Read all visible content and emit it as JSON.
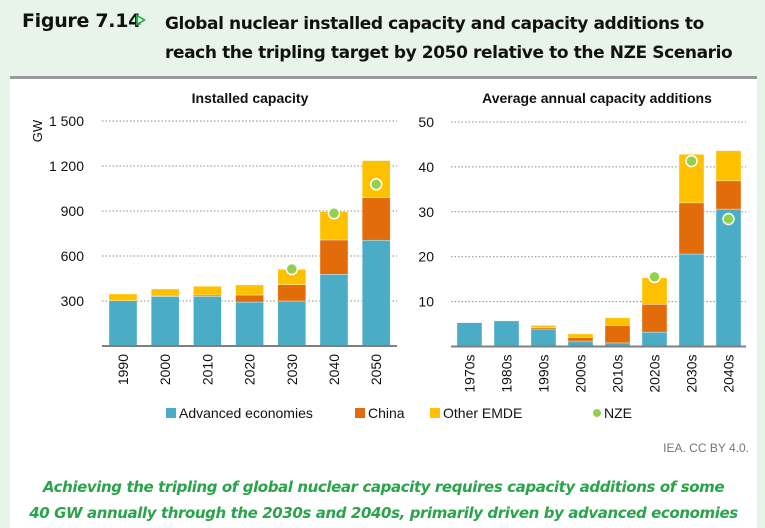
{
  "figure": {
    "number": "Figure 7.14",
    "arrow_icon": "triangle-right-icon",
    "title_line1": "Global nuclear installed capacity and capacity additions to",
    "title_line2": "reach the tripling target by 2050 relative to the NZE Scenario",
    "credit": "IEA. CC BY 4.0.",
    "caption_line1": "Achieving the tripling of global nuclear capacity requires capacity additions of some",
    "caption_line2": "40 GW annually through the 2030s and 2040s, primarily driven by advanced economies"
  },
  "colors": {
    "advanced": "#4bacc6",
    "china": "#e36c0a",
    "other_emde": "#ffc000",
    "nze": "#92d050",
    "grid": "#8a8a8a",
    "axis": "#7f7f7f"
  },
  "legend": [
    {
      "key": "advanced",
      "label": "Advanced economies",
      "shape": "square"
    },
    {
      "key": "china",
      "label": "China",
      "shape": "square"
    },
    {
      "key": "other_emde",
      "label": "Other EMDE",
      "shape": "square"
    },
    {
      "key": "nze",
      "label": "NZE",
      "shape": "circle"
    }
  ],
  "chart_data": [
    {
      "type": "bar",
      "stacked": true,
      "title": "Installed capacity",
      "ylabel": "GW",
      "xlabel": "",
      "ylim": [
        0,
        1500
      ],
      "yticks": [
        300,
        600,
        900,
        1200,
        1500
      ],
      "ytick_labels": [
        "300",
        "600",
        "900",
        "1 200",
        "1 500"
      ],
      "grid": true,
      "legend_position": "bottom",
      "categories": [
        "1990",
        "2000",
        "2010",
        "2020",
        "2030",
        "2040",
        "2050"
      ],
      "series": [
        {
          "name": "Advanced economies",
          "key": "advanced",
          "values": [
            302,
            331,
            331,
            293,
            300,
            478,
            705
          ]
        },
        {
          "name": "China",
          "key": "china",
          "values": [
            0,
            2,
            9,
            47,
            109,
            229,
            284
          ]
        },
        {
          "name": "Other EMDE",
          "key": "other_emde",
          "values": [
            45,
            47,
            58,
            67,
            102,
            189,
            247
          ]
        }
      ],
      "nze": {
        "name": "NZE",
        "values": [
          null,
          null,
          null,
          null,
          513,
          885,
          1078
        ]
      }
    },
    {
      "type": "bar",
      "stacked": true,
      "title": "Average annual capacity additions",
      "ylabel": "GW",
      "xlabel": "",
      "ylim": [
        0,
        50
      ],
      "yticks": [
        10,
        20,
        30,
        40,
        50
      ],
      "ytick_labels": [
        "10",
        "20",
        "30",
        "40",
        "50"
      ],
      "grid": true,
      "legend_position": "bottom",
      "categories": [
        "1970s",
        "1980s",
        "1990s",
        "2000s",
        "2010s",
        "2020s",
        "2030s",
        "2040s"
      ],
      "series": [
        {
          "name": "Advanced economies",
          "key": "advanced",
          "values": [
            5.3,
            5.7,
            3.9,
            1.2,
            0.8,
            3.2,
            20.6,
            30.6
          ]
        },
        {
          "name": "China",
          "key": "china",
          "values": [
            0,
            0,
            0.3,
            0.8,
            3.9,
            6.2,
            11.4,
            6.3
          ]
        },
        {
          "name": "Other EMDE",
          "key": "other_emde",
          "values": [
            0,
            0,
            0.5,
            0.8,
            1.7,
            5.9,
            10.8,
            6.7
          ]
        }
      ],
      "nze": {
        "name": "NZE",
        "values": [
          null,
          null,
          null,
          null,
          null,
          15.5,
          41.3,
          28.4
        ]
      }
    }
  ]
}
